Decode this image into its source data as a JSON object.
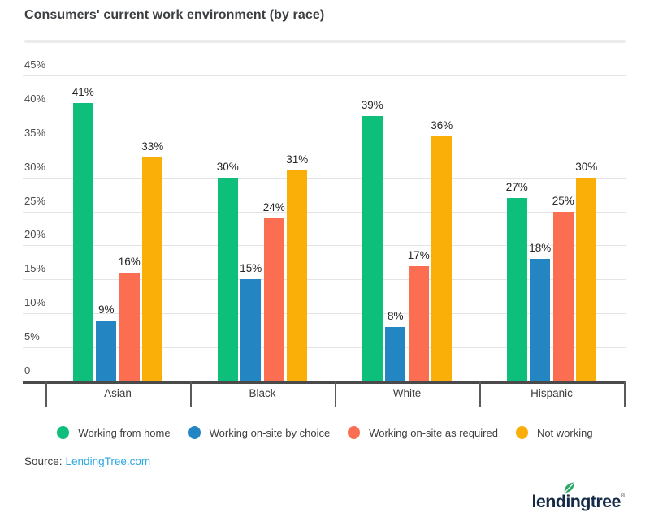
{
  "title": "Consumers' current work environment (by race)",
  "source": {
    "label": "Source:",
    "link_text": "LendingTree.com"
  },
  "logo": {
    "text": "lendingtree",
    "registered_mark": "®"
  },
  "colors": {
    "working_from_home_green": "#0ebe7b",
    "on_site_by_choice_blue": "#2385c1",
    "on_site_as_required_salmon": "#fb6e52",
    "not_working_amber": "#faae08",
    "source_link_blue": "#2ba9e0",
    "logo_navy": "#152a46",
    "logo_leaf_green": "#2fa86b"
  },
  "chart_data": {
    "type": "bar",
    "title": "Consumers' current work environment (by race)",
    "categories": [
      "Asian",
      "Black",
      "White",
      "Hispanic"
    ],
    "series": [
      {
        "name": "Working from home",
        "color": "#0ebe7b",
        "values": [
          41,
          30,
          39,
          27
        ]
      },
      {
        "name": "Working on-site by choice",
        "color": "#2385c1",
        "values": [
          9,
          15,
          8,
          18
        ]
      },
      {
        "name": "Working on-site as required",
        "color": "#fb6e52",
        "values": [
          16,
          24,
          17,
          25
        ]
      },
      {
        "name": "Not working",
        "color": "#faae08",
        "values": [
          33,
          31,
          36,
          30
        ]
      }
    ],
    "ylim": [
      0,
      45
    ],
    "ytick_step": 5,
    "ytick_suffix": "%",
    "zero_label": "0",
    "value_suffix": "%",
    "grid": true,
    "legend_position": "bottom",
    "bar_value_labels": true
  }
}
